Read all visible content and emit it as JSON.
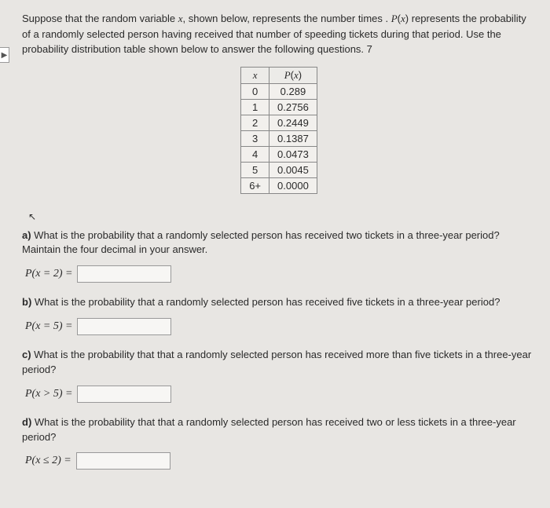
{
  "intro": "Suppose that the random variable x, shown below, represents the number times . P(x) represents the probability of a randomly selected person having received that number of speeding tickets during that period. Use the probability distribution table shown below to answer the following questions. 7",
  "table": {
    "headers": {
      "x": "x",
      "px": "P(x)"
    },
    "rows": [
      {
        "x": "0",
        "px": "0.289"
      },
      {
        "x": "1",
        "px": "0.2756"
      },
      {
        "x": "2",
        "px": "0.2449"
      },
      {
        "x": "3",
        "px": "0.1387"
      },
      {
        "x": "4",
        "px": "0.0473"
      },
      {
        "x": "5",
        "px": "0.0045"
      },
      {
        "x": "6+",
        "px": "0.0000"
      }
    ]
  },
  "qa": {
    "label": "a)",
    "text": " What is the probability that a randomly selected person has received two tickets in a three-year period? Maintain the four decimal in your answer.",
    "math": "P(x = 2) ="
  },
  "qb": {
    "label": "b)",
    "text": " What is the probability that a randomly selected person has received five tickets in a three-year period?",
    "math": "P(x = 5) ="
  },
  "qc": {
    "label": "c)",
    "text": " What is the probability that that a randomly selected person has received more than five tickets in a three-year period?",
    "math": "P(x > 5) ="
  },
  "qd": {
    "label": "d)",
    "text": " What is the probability that that a randomly selected person has received two or less tickets in a three-year period?",
    "math": "P(x ≤ 2) ="
  }
}
